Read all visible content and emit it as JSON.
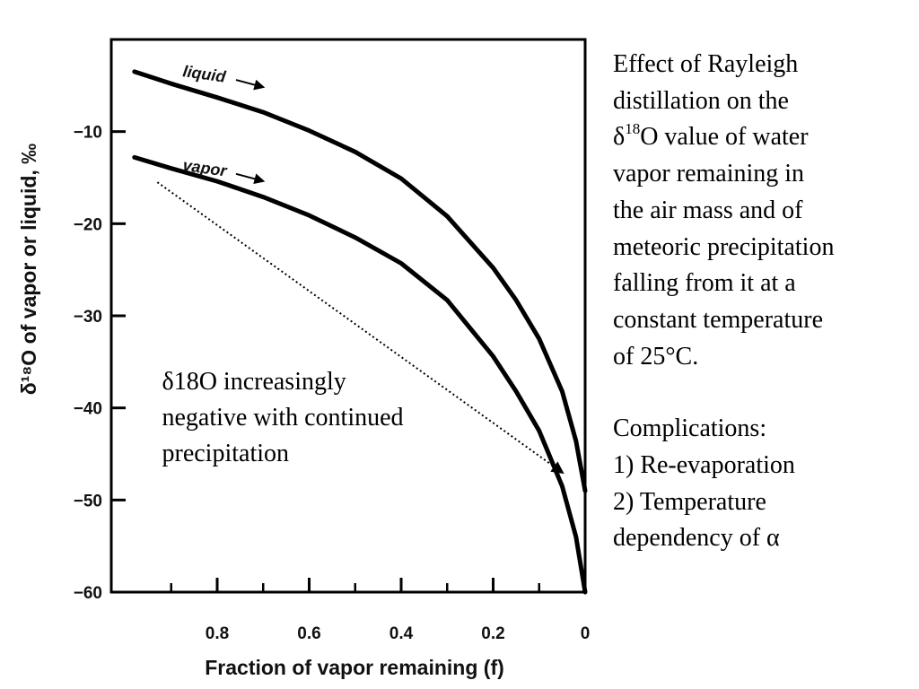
{
  "chart_data": {
    "type": "line",
    "xlabel": "Fraction of vapor remaining (f)",
    "ylabel": "δ¹⁸O of vapor or liquid, ‰",
    "xlim": [
      1.0,
      0.0
    ],
    "ylim": [
      -60,
      0
    ],
    "x_direction": "reversed",
    "x_ticks": [
      0.8,
      0.6,
      0.4,
      0.2,
      0
    ],
    "x_tick_labels": [
      "0.8",
      "0.6",
      "0.4",
      "0.2",
      "0"
    ],
    "y_ticks": [
      -10,
      -20,
      -30,
      -40,
      -50,
      -60
    ],
    "y_tick_labels": [
      "−10",
      "−20",
      "−30",
      "−40",
      "−50",
      "−60"
    ],
    "grid": false,
    "series": [
      {
        "name": "liquid",
        "color": "#000000",
        "x": [
          0.98,
          0.9,
          0.8,
          0.7,
          0.6,
          0.5,
          0.4,
          0.3,
          0.2,
          0.15,
          0.1,
          0.05,
          0.02,
          0.0
        ],
        "values": [
          -3.5,
          -4.8,
          -6.3,
          -7.9,
          -9.9,
          -12.2,
          -15.1,
          -19.2,
          -24.8,
          -28.3,
          -32.5,
          -38.2,
          -43.6,
          -49.0
        ]
      },
      {
        "name": "vapor",
        "color": "#000000",
        "x": [
          0.98,
          0.9,
          0.8,
          0.7,
          0.6,
          0.5,
          0.4,
          0.3,
          0.2,
          0.15,
          0.1,
          0.05,
          0.02,
          0.0
        ],
        "values": [
          -12.8,
          -14.0,
          -15.4,
          -17.1,
          -19.1,
          -21.5,
          -24.3,
          -28.3,
          -34.4,
          -38.2,
          -42.5,
          -48.5,
          -54.0,
          -60.0
        ]
      }
    ],
    "annotations": {
      "arrow": {
        "from": [
          0.93,
          -15.5
        ],
        "to": [
          0.05,
          -47.0
        ],
        "style": "dotted"
      },
      "text": [
        "δ18O increasingly",
        "negative with continued",
        "precipitation"
      ],
      "text_position": [
        0.92,
        -38.0
      ],
      "series_arrow_labels": [
        {
          "series": "liquid",
          "at": [
            0.72,
            -4.0
          ]
        },
        {
          "series": "vapor",
          "at": [
            0.72,
            -14.2
          ]
        }
      ]
    }
  },
  "caption": {
    "lines": [
      {
        "text": "Effect of Rayleigh"
      },
      {
        "text": "distillation on the"
      },
      {
        "pre": "δ",
        "sup": "18",
        "post": "O value of water"
      },
      {
        "text": "vapor remaining in"
      },
      {
        "text": "the air mass and of"
      },
      {
        "text": "meteoric precipitation"
      },
      {
        "text": "falling from it at a"
      },
      {
        "text": "constant temperature"
      },
      {
        "text": "of 25°C."
      }
    ],
    "complications_title": "Complications:",
    "complications": [
      "1) Re-evaporation",
      "2) Temperature",
      "dependency of α"
    ]
  }
}
